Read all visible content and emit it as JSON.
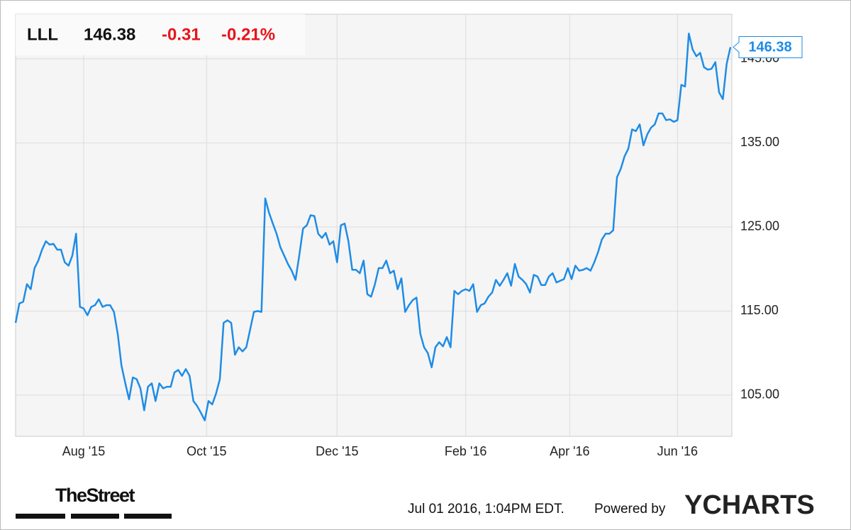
{
  "chart_data": {
    "type": "line",
    "symbol": "LLL",
    "price": "146.38",
    "change": "-0.31",
    "change_percent": "-0.21%",
    "color": "#1e8ce6",
    "values": [
      113.6,
      115.9,
      116.1,
      118.2,
      117.6,
      120.1,
      121.0,
      122.3,
      123.3,
      122.9,
      123.0,
      122.3,
      122.3,
      120.8,
      120.4,
      121.6,
      124.2,
      115.5,
      115.3,
      114.5,
      115.5,
      115.7,
      116.4,
      115.5,
      115.7,
      115.7,
      114.9,
      112.3,
      108.5,
      106.4,
      104.5,
      107.1,
      106.9,
      105.8,
      103.2,
      106.0,
      106.4,
      104.3,
      106.4,
      105.8,
      106.0,
      106.0,
      107.7,
      108.0,
      107.3,
      108.1,
      107.3,
      104.3,
      103.7,
      102.9,
      102.0,
      104.3,
      103.9,
      105.2,
      106.9,
      113.6,
      113.9,
      113.6,
      109.8,
      110.7,
      110.2,
      110.7,
      112.8,
      114.9,
      115.0,
      114.9,
      128.4,
      126.7,
      125.4,
      124.2,
      122.6,
      121.6,
      120.6,
      119.8,
      118.7,
      121.6,
      124.8,
      125.2,
      126.4,
      126.3,
      124.2,
      123.7,
      124.3,
      122.9,
      123.3,
      120.8,
      125.2,
      125.4,
      123.3,
      119.9,
      119.9,
      119.5,
      121.0,
      117.0,
      116.7,
      118.2,
      120.1,
      120.1,
      121.0,
      119.5,
      119.8,
      117.6,
      118.9,
      114.9,
      115.7,
      116.3,
      116.6,
      112.3,
      110.7,
      110.0,
      108.3,
      110.7,
      111.3,
      110.8,
      111.9,
      110.7,
      117.4,
      117.0,
      117.4,
      117.6,
      117.4,
      118.2,
      114.9,
      115.7,
      115.9,
      116.7,
      117.2,
      118.7,
      118.0,
      118.7,
      119.5,
      118.0,
      120.6,
      119.1,
      118.7,
      118.2,
      117.2,
      119.3,
      119.1,
      118.1,
      118.1,
      119.1,
      119.5,
      118.4,
      118.6,
      118.8,
      120.1,
      118.8,
      120.4,
      119.8,
      119.9,
      120.1,
      119.8,
      120.8,
      122.0,
      123.5,
      124.2,
      124.2,
      124.6,
      130.9,
      131.9,
      133.4,
      134.3,
      136.6,
      136.4,
      137.2,
      134.7,
      136.0,
      136.8,
      137.2,
      138.5,
      138.5,
      137.7,
      137.8,
      137.5,
      137.7,
      141.9,
      141.7,
      148.0,
      146.1,
      145.3,
      145.7,
      144.0,
      143.7,
      143.8,
      144.6,
      141.0,
      140.2,
      144.4,
      146.38
    ],
    "xlim": [
      0,
      189
    ],
    "xticks": [
      {
        "value": 18,
        "label": "Aug '15"
      },
      {
        "value": 50.5,
        "label": "Oct '15"
      },
      {
        "value": 85,
        "label": "Dec '15"
      },
      {
        "value": 119,
        "label": "Feb '16"
      },
      {
        "value": 146.5,
        "label": "Apr '16"
      },
      {
        "value": 175,
        "label": "Jun '16"
      }
    ],
    "ylim": [
      100.1,
      150.3
    ],
    "yticks": [
      {
        "value": 105,
        "label": "105.00"
      },
      {
        "value": 115,
        "label": "115.00"
      },
      {
        "value": 125,
        "label": "125.00"
      },
      {
        "value": 135,
        "label": "135.00"
      },
      {
        "value": 145,
        "label": "145.00"
      }
    ],
    "grid": true,
    "brand": "TheStreet",
    "timestamp": "Jul 01 2016, 1:04PM EDT.",
    "powered_by": "Powered by",
    "provider": "YCHARTS"
  }
}
